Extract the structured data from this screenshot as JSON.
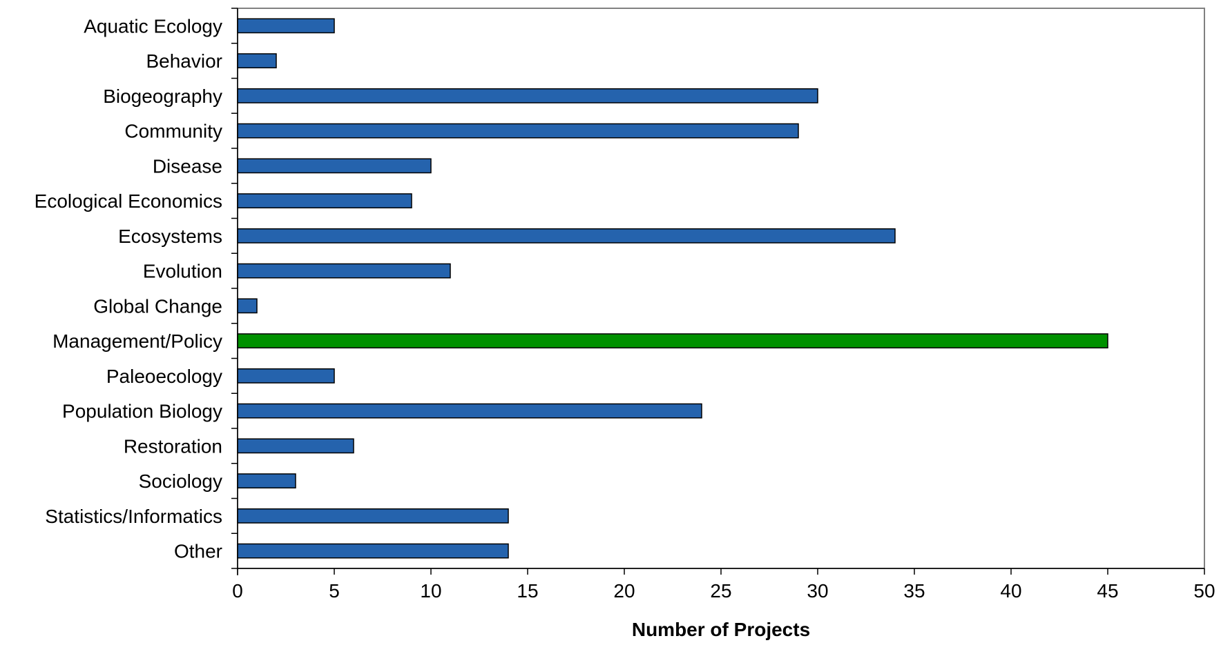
{
  "chart_data": {
    "type": "bar",
    "orientation": "horizontal",
    "title": "",
    "xlabel": "Number of Projects",
    "ylabel": "",
    "categories": [
      "Aquatic Ecology",
      "Behavior",
      "Biogeography",
      "Community",
      "Disease",
      "Ecological Economics",
      "Ecosystems",
      "Evolution",
      "Global Change",
      "Management/Policy",
      "Paleoecology",
      "Population Biology",
      "Restoration",
      "Sociology",
      "Statistics/Informatics",
      "Other"
    ],
    "values": [
      5,
      2,
      30,
      29,
      10,
      9,
      34,
      11,
      1,
      45,
      5,
      24,
      6,
      3,
      14,
      14
    ],
    "highlight_index": 9,
    "xlim": [
      0,
      50
    ],
    "xticks": [
      "0",
      "5",
      "10",
      "15",
      "20",
      "25",
      "30",
      "35",
      "40",
      "45",
      "50"
    ],
    "grid": false,
    "legend": "none",
    "colors": {
      "bar": "#2563ad",
      "highlight": "#009100",
      "outline": "#000000",
      "axis": "#808080"
    }
  }
}
